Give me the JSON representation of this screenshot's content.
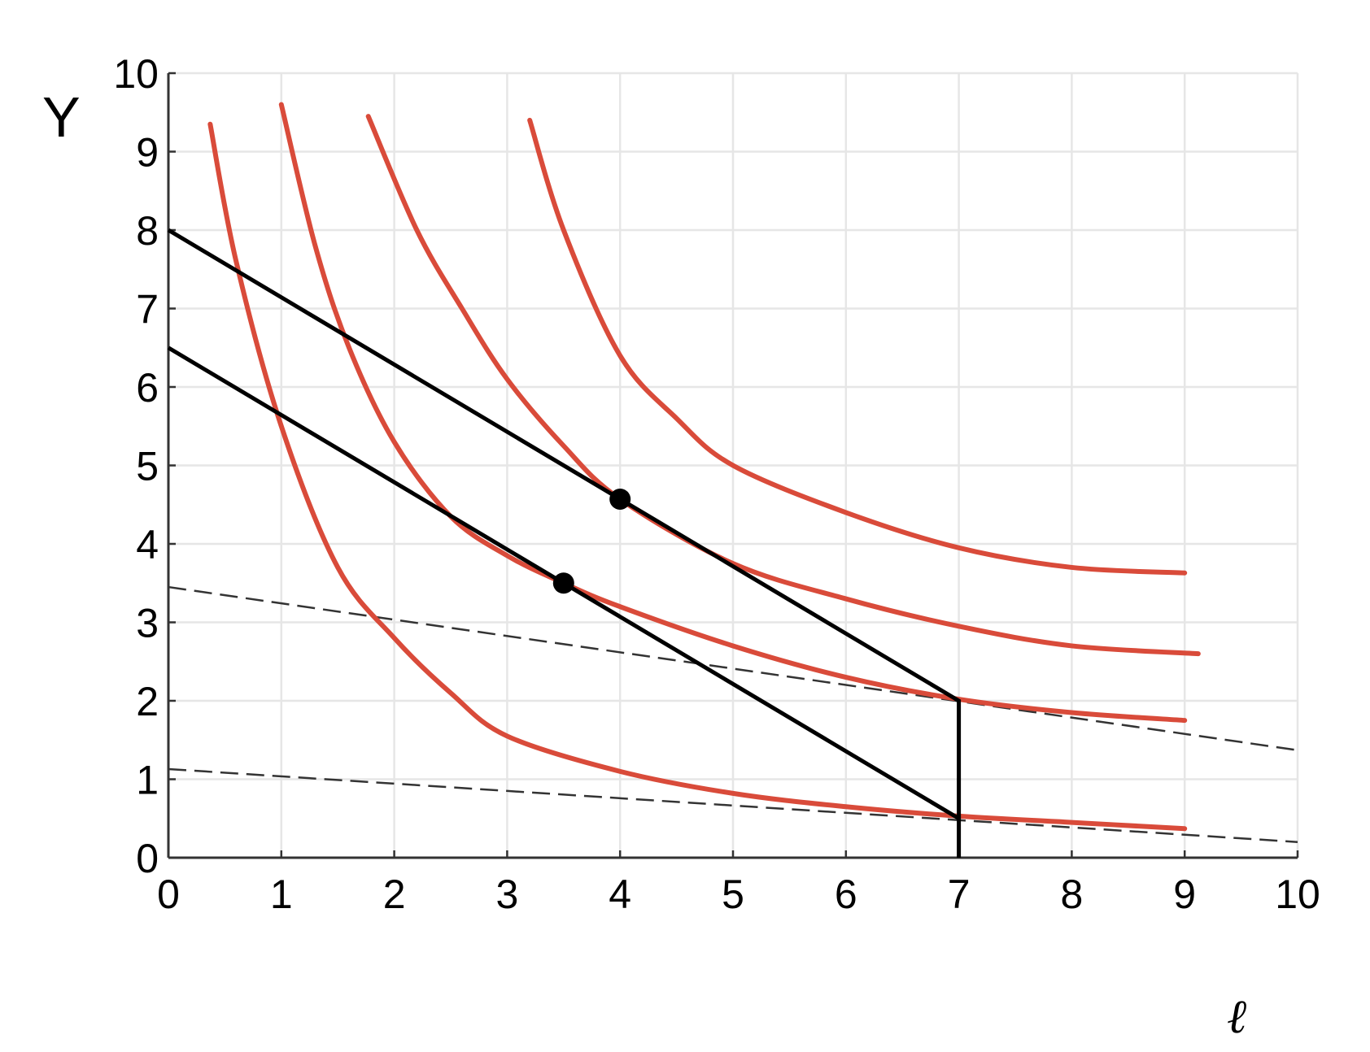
{
  "chart_data": {
    "type": "line",
    "title": "",
    "xlabel": "ℓ",
    "ylabel": "Y",
    "xlim": [
      0,
      10
    ],
    "ylim": [
      0,
      10
    ],
    "grid": true,
    "x_ticks": [
      "0",
      "1",
      "2",
      "3",
      "4",
      "5",
      "6",
      "7",
      "8",
      "9",
      "10"
    ],
    "y_ticks": [
      "0",
      "1",
      "2",
      "3",
      "4",
      "5",
      "6",
      "7",
      "8",
      "9",
      "10"
    ],
    "colors": {
      "indifference": "#d94b3a",
      "budget": "#000000",
      "dashed": "#333333",
      "grid": "#e6e6e6"
    },
    "series": [
      {
        "name": "indifference-curve-1",
        "style": "red-solid",
        "points": [
          [
            0.37,
            9.35
          ],
          [
            0.6,
            7.6
          ],
          [
            1.0,
            5.5
          ],
          [
            1.5,
            3.7
          ],
          [
            2.0,
            2.8
          ],
          [
            2.5,
            2.1
          ],
          [
            3.0,
            1.55
          ],
          [
            4.0,
            1.1
          ],
          [
            5.0,
            0.82
          ],
          [
            6.0,
            0.65
          ],
          [
            7.0,
            0.53
          ],
          [
            8.0,
            0.45
          ],
          [
            9.0,
            0.37
          ]
        ]
      },
      {
        "name": "indifference-curve-2",
        "style": "red-solid",
        "points": [
          [
            1.0,
            9.6
          ],
          [
            1.3,
            7.8
          ],
          [
            1.6,
            6.5
          ],
          [
            2.0,
            5.3
          ],
          [
            2.5,
            4.35
          ],
          [
            3.0,
            3.85
          ],
          [
            3.5,
            3.5
          ],
          [
            4.0,
            3.2
          ],
          [
            5.0,
            2.7
          ],
          [
            6.0,
            2.3
          ],
          [
            7.0,
            2.02
          ],
          [
            8.0,
            1.85
          ],
          [
            9.0,
            1.75
          ]
        ]
      },
      {
        "name": "indifference-curve-3",
        "style": "red-solid",
        "points": [
          [
            1.77,
            9.45
          ],
          [
            2.2,
            8.0
          ],
          [
            2.6,
            7.0
          ],
          [
            3.0,
            6.1
          ],
          [
            3.5,
            5.25
          ],
          [
            4.0,
            4.57
          ],
          [
            5.0,
            3.75
          ],
          [
            6.0,
            3.3
          ],
          [
            7.0,
            2.95
          ],
          [
            8.0,
            2.7
          ],
          [
            9.12,
            2.6
          ]
        ]
      },
      {
        "name": "indifference-curve-4",
        "style": "red-solid",
        "points": [
          [
            3.2,
            9.4
          ],
          [
            3.5,
            8.0
          ],
          [
            4.0,
            6.4
          ],
          [
            4.5,
            5.6
          ],
          [
            5.0,
            5.0
          ],
          [
            6.0,
            4.4
          ],
          [
            7.0,
            3.95
          ],
          [
            8.0,
            3.7
          ],
          [
            9.0,
            3.63
          ]
        ]
      },
      {
        "name": "budget-line-high",
        "style": "black-solid",
        "points": [
          [
            0,
            8
          ],
          [
            7,
            2
          ],
          [
            7,
            0
          ]
        ]
      },
      {
        "name": "budget-line-low",
        "style": "black-solid",
        "points": [
          [
            0,
            6.5
          ],
          [
            7,
            0.5
          ]
        ]
      },
      {
        "name": "dashed-line-upper",
        "style": "dashed",
        "points": [
          [
            0,
            3.45
          ],
          [
            10,
            1.37
          ]
        ]
      },
      {
        "name": "dashed-line-lower",
        "style": "dashed",
        "points": [
          [
            0,
            1.13
          ],
          [
            10,
            0.2
          ]
        ]
      }
    ],
    "markers": [
      {
        "name": "optimum-high",
        "x": 4.0,
        "y": 4.57
      },
      {
        "name": "optimum-low",
        "x": 3.5,
        "y": 3.5
      }
    ]
  }
}
